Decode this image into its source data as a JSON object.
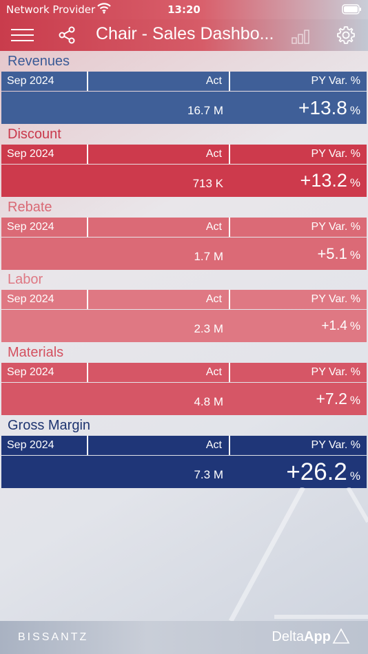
{
  "status": {
    "provider": "Network Provider",
    "time": "13:20"
  },
  "nav": {
    "title": "Chair - Sales Dashbo...",
    "icons": [
      "menu-icon",
      "share-icon",
      "chart-icon",
      "gear-icon"
    ]
  },
  "kpis": [
    {
      "title": "Revenues",
      "title_color": "#3a5a96",
      "period": "Sep 2024",
      "act_label": "Act",
      "var_label": "PY Var. %",
      "act": "16.7 M",
      "var": "+13.8",
      "var_unit": "%",
      "color": "#3f5f98",
      "var_size": 28
    },
    {
      "title": "Discount",
      "title_color": "#c9384b",
      "period": "Sep 2024",
      "act_label": "Act",
      "var_label": "PY Var. %",
      "act": "713 K",
      "var": "+13.2",
      "var_unit": "%",
      "color": "#cd3a4c",
      "var_size": 27
    },
    {
      "title": "Rebate",
      "title_color": "#d96874",
      "period": "Sep 2024",
      "act_label": "Act",
      "var_label": "PY Var. %",
      "act": "1.7 M",
      "var": "+5.1",
      "var_unit": "%",
      "color": "#db6a76",
      "var_size": 22
    },
    {
      "title": "Labor",
      "title_color": "#de7883",
      "period": "Sep 2024",
      "act_label": "Act",
      "var_label": "PY Var. %",
      "act": "2.3 M",
      "var": "+1.4",
      "var_unit": "%",
      "color": "#df7883",
      "var_size": 19
    },
    {
      "title": "Materials",
      "title_color": "#d4505f",
      "period": "Sep 2024",
      "act_label": "Act",
      "var_label": "PY Var. %",
      "act": "4.8 M",
      "var": "+7.2",
      "var_unit": "%",
      "color": "#d65666",
      "var_size": 23
    },
    {
      "title": "Gross Margin",
      "title_color": "#1e3470",
      "period": "Sep 2024",
      "act_label": "Act",
      "var_label": "PY Var. %",
      "act": "7.3 M",
      "var": "+26.2",
      "var_unit": "%",
      "color": "#1f3678",
      "var_size": 35
    }
  ],
  "footer": {
    "brand": "BISSANTZ",
    "app_prefix": "Delta",
    "app_bold": "App"
  }
}
